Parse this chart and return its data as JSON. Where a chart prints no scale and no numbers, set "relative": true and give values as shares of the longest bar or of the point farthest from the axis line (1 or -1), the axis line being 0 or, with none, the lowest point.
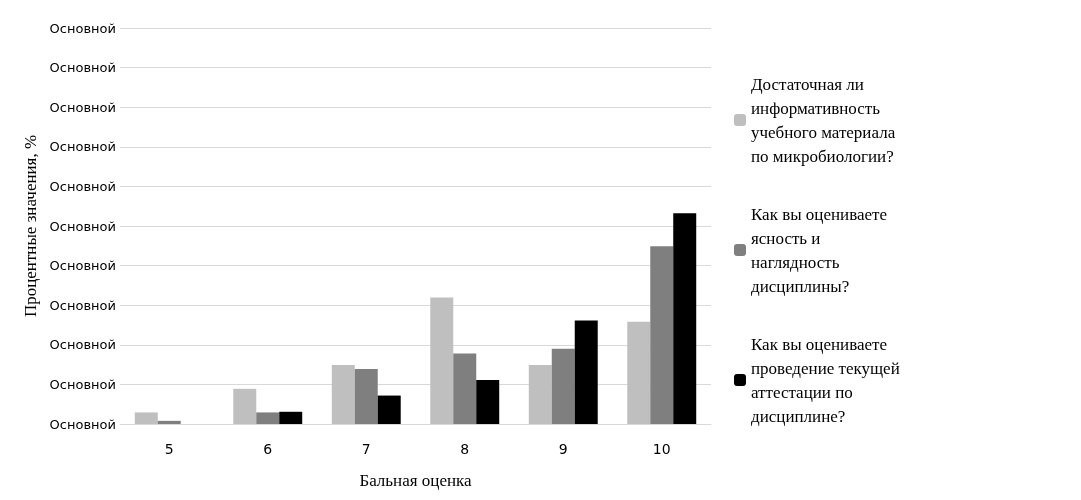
{
  "chart_data": {
    "type": "bar",
    "relative": true,
    "xlabel": "Бальная оценка",
    "ylabel": "Процентные значения, %",
    "categories": [
      "5",
      "6",
      "7",
      "8",
      "9",
      "10"
    ],
    "series": [
      {
        "name": "Достаточная ли информативность учебного материала по микробиологии?",
        "color": "#bfbfbf",
        "values": [
          0.055,
          0.167,
          0.28,
          0.6,
          0.28,
          0.485
        ]
      },
      {
        "name": "Как вы оцениваете ясность и наглядность дисциплины?",
        "color": "#7f7f7f",
        "values": [
          0.015,
          0.055,
          0.261,
          0.335,
          0.357,
          0.844
        ]
      },
      {
        "name": "Как вы оцениваете проведение текущей аттестации по дисциплине?",
        "color": "#000000",
        "values": [
          0,
          0.058,
          0.135,
          0.209,
          0.491,
          1
        ]
      }
    ],
    "annotations": [
      "Основной",
      "Основной",
      "Основной",
      "Основной",
      "Основной",
      "Основной",
      "Основной",
      "Основной",
      "Основной",
      "Основной",
      "Основной"
    ],
    "grid": "y",
    "legend": "right"
  }
}
